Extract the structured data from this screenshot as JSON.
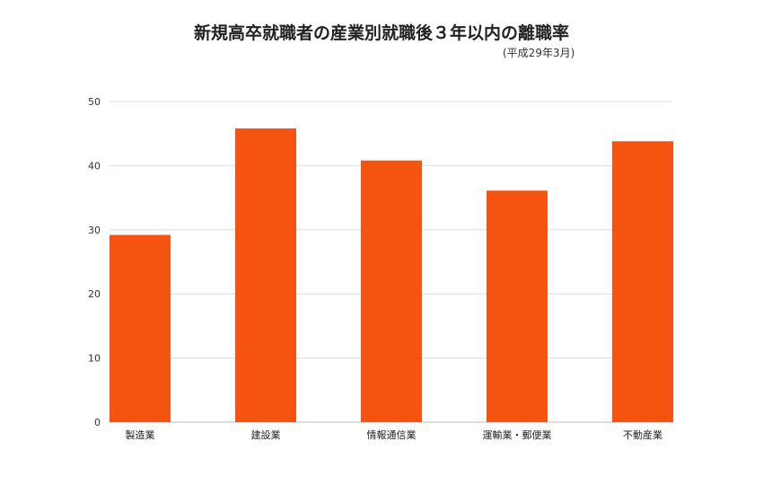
{
  "title": "新規高卒就職者の産業別就職後３年以内の離職率",
  "subtitle": "(平成29年3月)",
  "chart_data": {
    "type": "bar",
    "categories": [
      "製造業",
      "建設業",
      "情報通信業",
      "運輸業・郵便業",
      "不動産業"
    ],
    "values": [
      29.2,
      45.8,
      40.8,
      36.1,
      43.8
    ],
    "ylim": [
      0,
      50
    ],
    "yticks": [
      0,
      10,
      20,
      30,
      40,
      50
    ],
    "xlabel": "",
    "ylabel": "",
    "grid": true,
    "bar_color": "#f4540f"
  }
}
